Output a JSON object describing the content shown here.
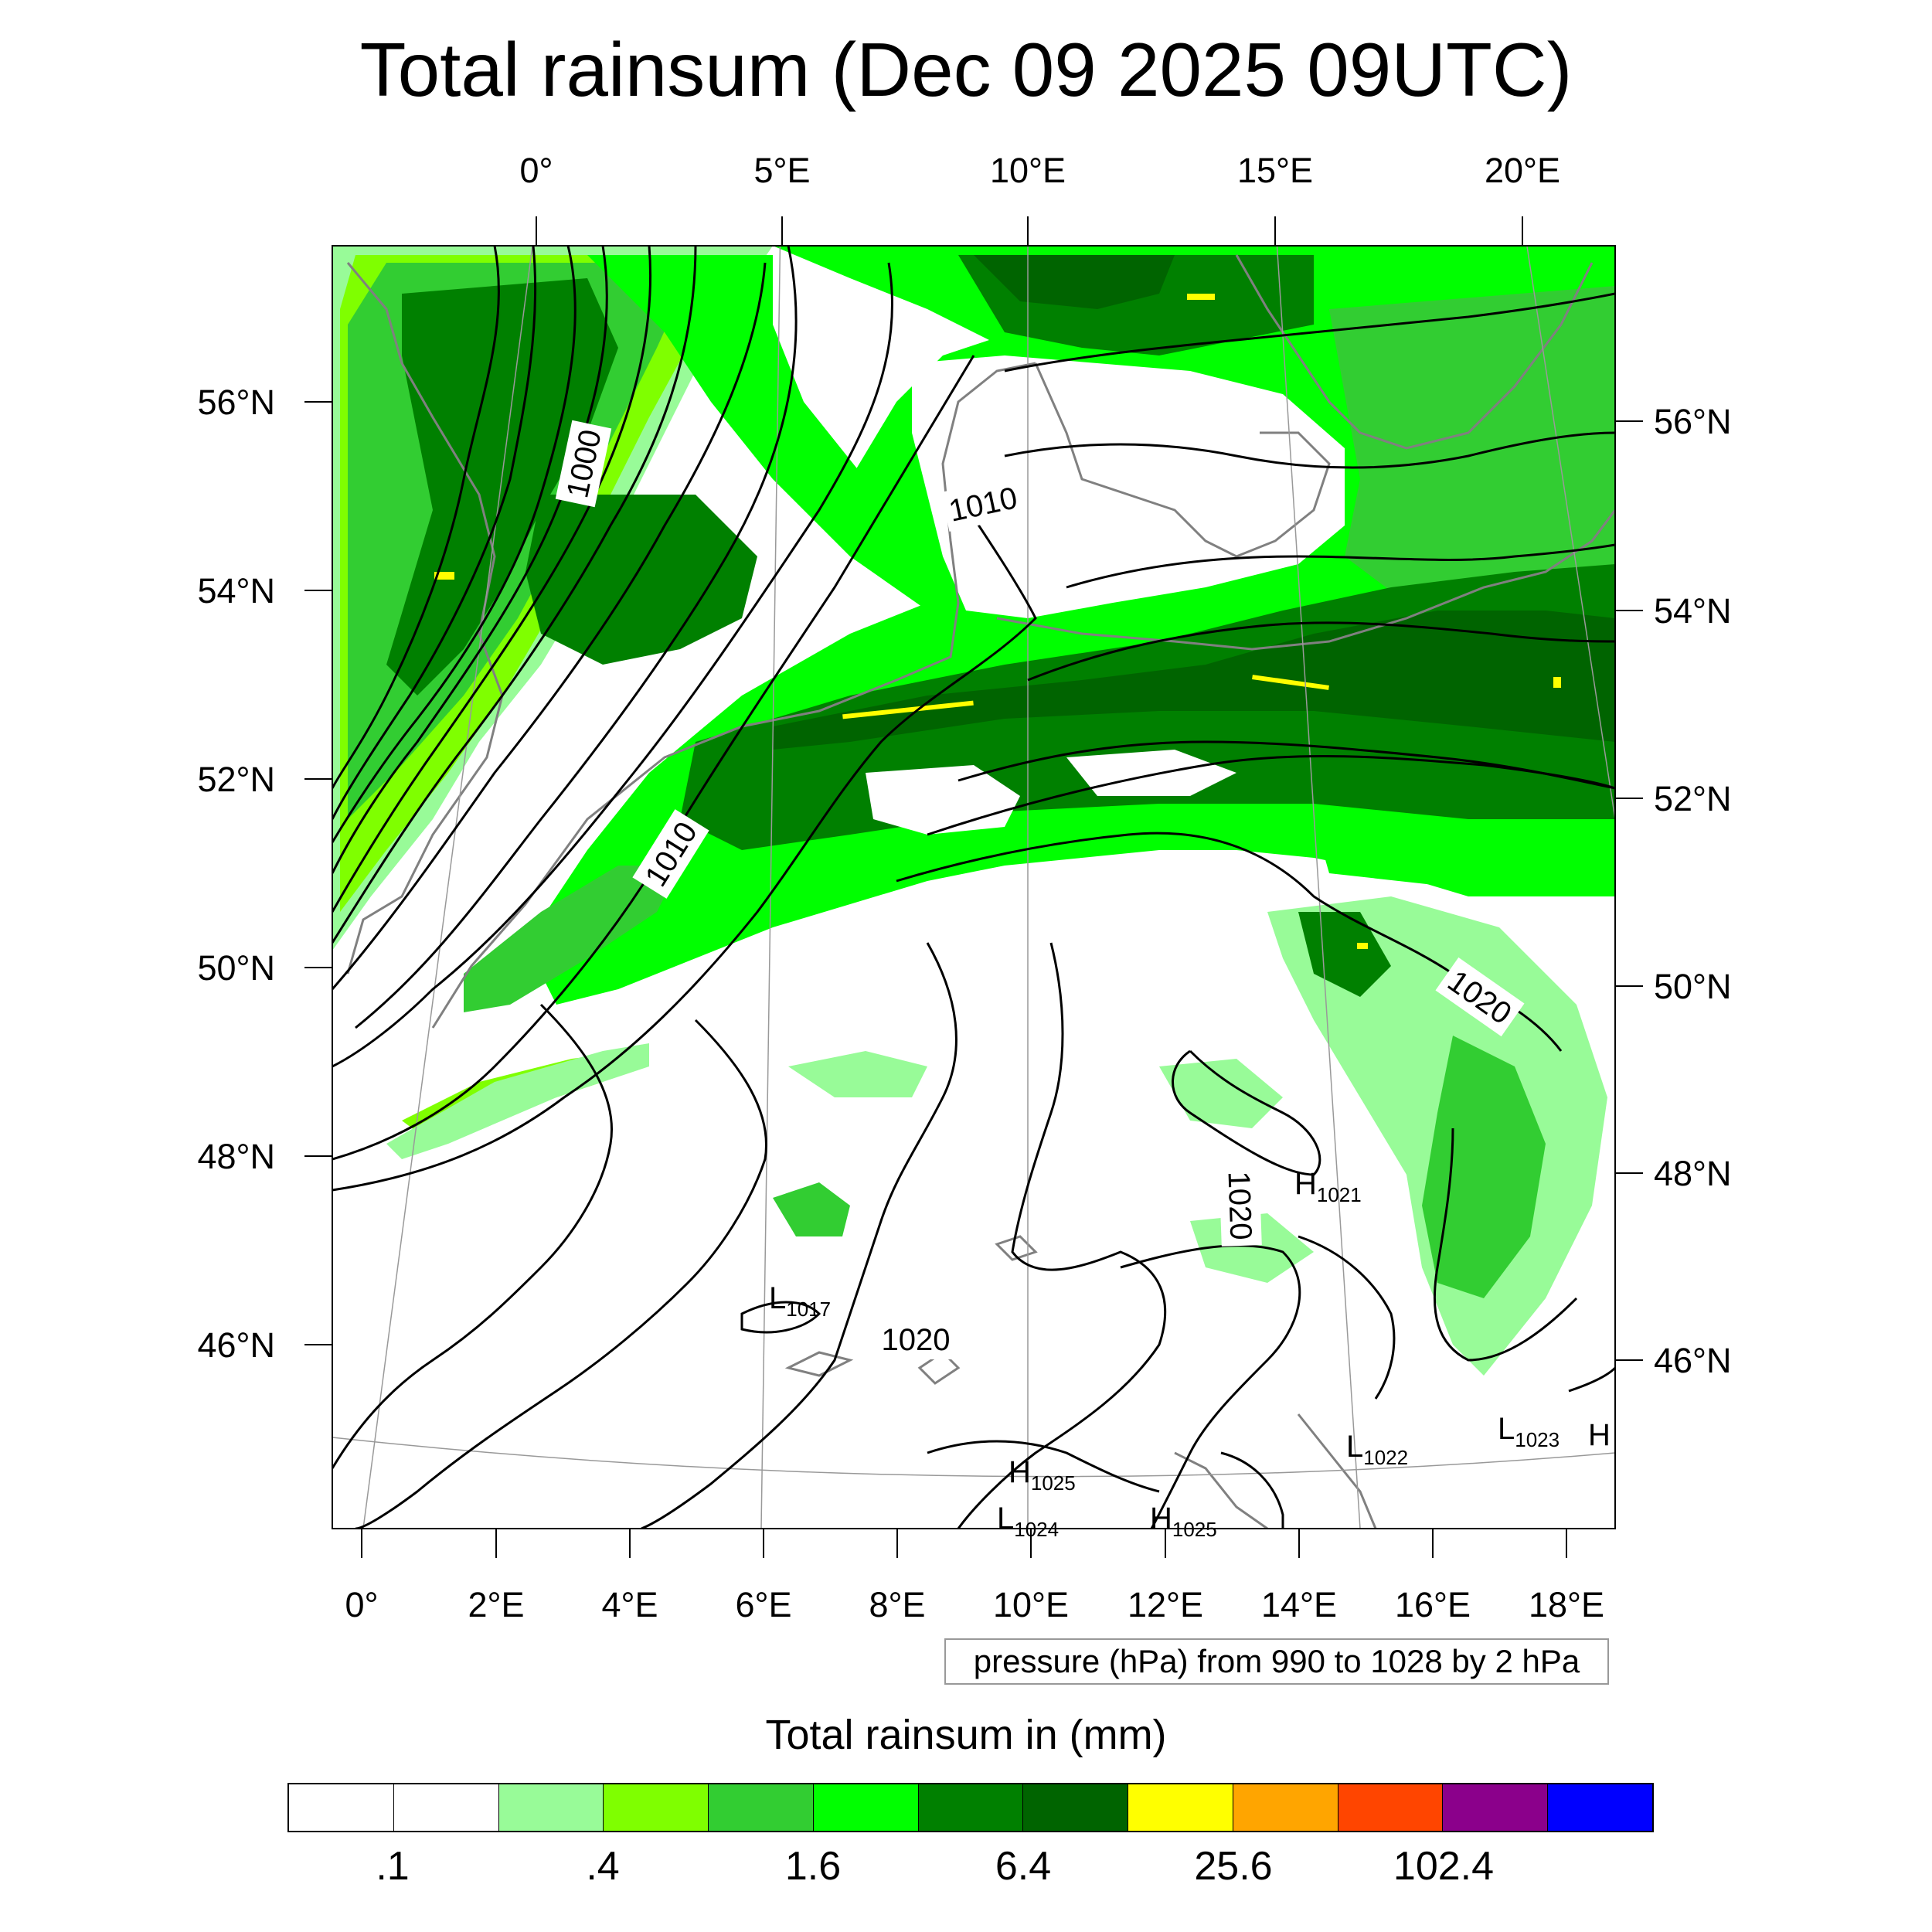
{
  "title": "Total rainsum (Dec 09 2025 09UTC)",
  "top_axis_labels": [
    "0°",
    "5°E",
    "10°E",
    "15°E",
    "20°E"
  ],
  "bottom_axis_labels": [
    "0°",
    "2°E",
    "4°E",
    "6°E",
    "8°E",
    "10°E",
    "12°E",
    "14°E",
    "16°E",
    "18°E"
  ],
  "left_axis_labels": [
    "56°N",
    "54°N",
    "52°N",
    "50°N",
    "48°N",
    "46°N"
  ],
  "right_axis_labels": [
    "56°N",
    "54°N",
    "52°N",
    "50°N",
    "48°N",
    "46°N"
  ],
  "contour_labels": [
    "1000",
    "1010",
    "1010",
    "1020",
    "1020",
    "1020"
  ],
  "pressure_centers": [
    {
      "type": "H",
      "value": "1021"
    },
    {
      "type": "L",
      "value": "1017"
    },
    {
      "type": "L",
      "value": "1022"
    },
    {
      "type": "L",
      "value": "1023"
    },
    {
      "type": "H",
      "value": ""
    },
    {
      "type": "H",
      "value": "1025"
    },
    {
      "type": "L",
      "value": "1024"
    },
    {
      "type": "H",
      "value": "1025"
    }
  ],
  "info_text": "pressure (hPa) from 990 to 1028 by 2 hPa",
  "colorbar": {
    "title": "Total rainsum in (mm)",
    "colors": [
      "#ffffff",
      "#ffffff",
      "#98fb98",
      "#7fff00",
      "#32cd32",
      "#00ff00",
      "#008000",
      "#006400",
      "#ffff00",
      "#ffa500",
      "#ff4500",
      "#8b008b",
      "#0000ff"
    ],
    "labels": [
      ".1",
      ".4",
      "1.6",
      "6.4",
      "25.6",
      "102.4"
    ],
    "label_boundaries": [
      1,
      3,
      5,
      7,
      9,
      11
    ]
  },
  "rain_colors": {
    "light": "#98fb98",
    "chartreuse": "#7fff00",
    "limegreen": "#32cd32",
    "lime": "#00ff00",
    "green": "#008000",
    "darkgreen": "#006400",
    "yellow": "#ffff00"
  }
}
